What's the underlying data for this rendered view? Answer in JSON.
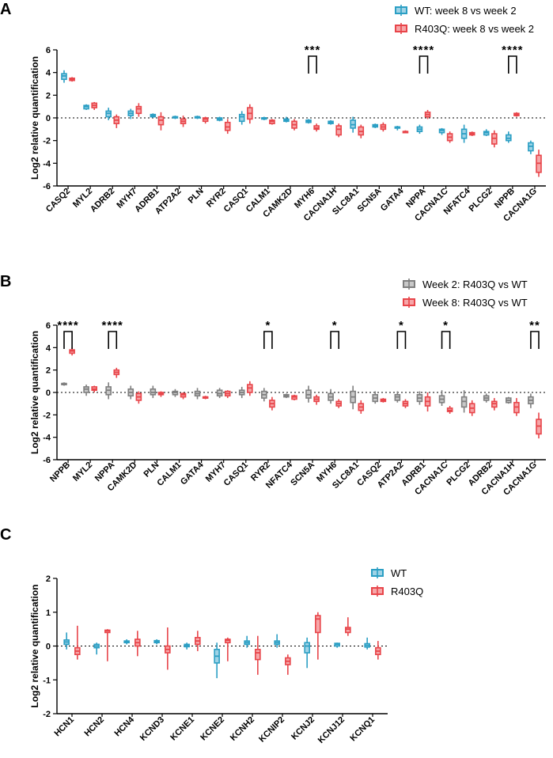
{
  "colors": {
    "wt": "#2b9fc4",
    "wt_fill": "#9fd3e6",
    "r403q": "#e8454a",
    "r403q_fill": "#f6a6a8",
    "w2": "#7f7f7f",
    "w2_fill": "#c8c8c8"
  },
  "chart_data": [
    {
      "panel": "A",
      "type": "box",
      "ylabel": "Log2 relative quantification",
      "ylim": [
        -6,
        6
      ],
      "yticks": [
        -6,
        -4,
        -2,
        0,
        2,
        4,
        6
      ],
      "legend": {
        "position": "top-right",
        "entries": [
          "WT: week 8 vs week 2",
          "R403Q: week 8 vs week 2"
        ]
      },
      "categories": [
        "CASQ2",
        "MYL2",
        "ADRB2",
        "MYH7",
        "ADRB1",
        "ATP2A2",
        "PLN",
        "RYR2",
        "CASQ1",
        "CALM1",
        "CAMK2D",
        "MYH6",
        "CACNA1H",
        "SLC8A1",
        "SCN5A",
        "GATA4",
        "NPPA",
        "CACNA1C",
        "NFATC4",
        "PLCG2",
        "NPPB",
        "CACNA1G"
      ],
      "series": [
        {
          "name": "WT: week 8 vs week 2",
          "color_key": "wt",
          "boxes": [
            [
              3.1,
              3.4,
              3.7,
              3.9,
              4.2
            ],
            [
              0.7,
              0.8,
              1.0,
              1.1,
              1.2
            ],
            [
              -0.2,
              0.1,
              0.4,
              0.6,
              0.9
            ],
            [
              -0.1,
              0.2,
              0.4,
              0.6,
              0.8
            ],
            [
              0.0,
              0.1,
              0.2,
              0.3,
              0.4
            ],
            [
              -0.1,
              0.0,
              0.1,
              0.1,
              0.2
            ],
            [
              -0.1,
              0.0,
              0.1,
              0.1,
              0.2
            ],
            [
              -0.3,
              -0.2,
              -0.1,
              0.0,
              0.1
            ],
            [
              -0.6,
              -0.3,
              0.1,
              0.3,
              0.6
            ],
            [
              -0.2,
              -0.1,
              0.0,
              0.0,
              0.1
            ],
            [
              -0.4,
              -0.3,
              -0.2,
              -0.1,
              0.1
            ],
            [
              -0.5,
              -0.4,
              -0.3,
              -0.2,
              -0.1
            ],
            [
              -0.6,
              -0.5,
              -0.4,
              -0.3,
              -0.2
            ],
            [
              -1.3,
              -0.9,
              -0.6,
              -0.2,
              0.1
            ],
            [
              -0.9,
              -0.8,
              -0.7,
              -0.6,
              -0.5
            ],
            [
              -1.1,
              -0.9,
              -0.8,
              -0.8,
              -0.7
            ],
            [
              -1.4,
              -1.2,
              -1.0,
              -0.8,
              -0.6
            ],
            [
              -1.5,
              -1.3,
              -1.1,
              -1.0,
              -0.9
            ],
            [
              -2.2,
              -1.8,
              -1.4,
              -1.0,
              -0.6
            ],
            [
              -1.6,
              -1.5,
              -1.3,
              -1.2,
              -1.0
            ],
            [
              -2.2,
              -2.0,
              -1.8,
              -1.5,
              -1.2
            ],
            [
              -3.2,
              -2.9,
              -2.5,
              -2.2,
              -2.0
            ]
          ]
        },
        {
          "name": "R403Q: week 8 vs week 2",
          "color_key": "r403q",
          "boxes": [
            [
              3.2,
              3.3,
              3.4,
              3.5,
              3.6
            ],
            [
              0.7,
              0.9,
              1.1,
              1.3,
              1.4
            ],
            [
              -0.9,
              -0.5,
              -0.2,
              0.1,
              0.3
            ],
            [
              0.1,
              0.4,
              0.8,
              1.0,
              1.3
            ],
            [
              -1.1,
              -0.6,
              -0.2,
              0.1,
              0.5
            ],
            [
              -0.8,
              -0.5,
              -0.3,
              -0.1,
              0.2
            ],
            [
              -0.5,
              -0.3,
              -0.1,
              0.0,
              0.1
            ],
            [
              -1.4,
              -1.1,
              -0.8,
              -0.4,
              -0.1
            ],
            [
              -0.5,
              -0.1,
              0.4,
              0.9,
              1.2
            ],
            [
              -0.6,
              -0.5,
              -0.3,
              -0.2,
              -0.1
            ],
            [
              -1.1,
              -0.9,
              -0.6,
              -0.3,
              -0.1
            ],
            [
              -1.2,
              -1.0,
              -0.9,
              -0.7,
              -0.5
            ],
            [
              -1.7,
              -1.5,
              -1.0,
              -0.7,
              -0.5
            ],
            [
              -1.8,
              -1.5,
              -1.2,
              -0.8,
              -0.6
            ],
            [
              -1.2,
              -1.0,
              -0.8,
              -0.6,
              -0.4
            ],
            [
              -1.3,
              -1.3,
              -1.2,
              -1.2,
              -1.1
            ],
            [
              -0.1,
              0.1,
              0.3,
              0.5,
              0.7
            ],
            [
              -2.2,
              -2.0,
              -1.7,
              -1.4,
              -1.2
            ],
            [
              -1.6,
              -1.5,
              -1.4,
              -1.3,
              -1.2
            ],
            [
              -2.6,
              -2.3,
              -1.8,
              -1.4,
              -1.1
            ],
            [
              0.1,
              0.2,
              0.3,
              0.4,
              0.5
            ],
            [
              -5.2,
              -4.8,
              -4.0,
              -3.3,
              -2.8
            ]
          ]
        }
      ],
      "significance": [
        {
          "category": "MYH6",
          "label": "***"
        },
        {
          "category": "NPPA",
          "label": "****"
        },
        {
          "category": "NPPB",
          "label": "****"
        }
      ]
    },
    {
      "panel": "B",
      "type": "box",
      "ylabel": "Log2 relative quantification",
      "ylim": [
        -6,
        6
      ],
      "yticks": [
        -6,
        -4,
        -2,
        0,
        2,
        4,
        6
      ],
      "legend": {
        "position": "top-right",
        "entries": [
          "Week 2: R403Q vs WT",
          "Week 8: R403Q vs WT"
        ]
      },
      "categories": [
        "NPPB",
        "MYL2",
        "NPPA",
        "CAMK2D",
        "PLN",
        "CALM1",
        "GATA4",
        "MYH7",
        "CASQ1",
        "RYR2",
        "NFATC4",
        "SCN5A",
        "MYH6",
        "SLC8A1",
        "CASQ2",
        "ATP2A2",
        "ADRB1",
        "CACNA1C",
        "PLCG2",
        "ADRB2",
        "CACNA1H",
        "CACNA1G"
      ],
      "series": [
        {
          "name": "Week 2: R403Q vs WT",
          "color_key": "w2",
          "boxes": [
            [
              0.6,
              0.7,
              0.8,
              0.8,
              0.9
            ],
            [
              -0.3,
              0.0,
              0.3,
              0.5,
              0.7
            ],
            [
              -0.6,
              -0.2,
              0.2,
              0.5,
              0.9
            ],
            [
              -0.6,
              -0.3,
              0.0,
              0.3,
              0.6
            ],
            [
              -0.5,
              -0.2,
              0.0,
              0.3,
              0.6
            ],
            [
              -0.4,
              -0.2,
              0.0,
              0.1,
              0.3
            ],
            [
              -0.6,
              -0.3,
              -0.1,
              0.1,
              0.4
            ],
            [
              -0.5,
              -0.3,
              -0.1,
              0.2,
              0.4
            ],
            [
              -0.5,
              -0.2,
              0.0,
              0.2,
              0.5
            ],
            [
              -0.8,
              -0.5,
              -0.2,
              0.1,
              0.4
            ],
            [
              -0.5,
              -0.4,
              -0.3,
              -0.2,
              -0.1
            ],
            [
              -0.9,
              -0.5,
              -0.2,
              0.2,
              0.6
            ],
            [
              -1.0,
              -0.7,
              -0.4,
              -0.1,
              0.3
            ],
            [
              -1.5,
              -0.9,
              -0.4,
              0.1,
              0.6
            ],
            [
              -1.0,
              -0.8,
              -0.5,
              -0.2,
              0.1
            ],
            [
              -0.9,
              -0.7,
              -0.4,
              -0.2,
              0.1
            ],
            [
              -1.1,
              -0.8,
              -0.5,
              -0.2,
              0.1
            ],
            [
              -1.2,
              -0.9,
              -0.6,
              -0.3,
              0.2
            ],
            [
              -1.8,
              -1.3,
              -0.8,
              -0.4,
              0.2
            ],
            [
              -0.9,
              -0.7,
              -0.5,
              -0.3,
              -0.1
            ],
            [
              -1.0,
              -0.9,
              -0.7,
              -0.5,
              -0.4
            ],
            [
              -1.4,
              -1.0,
              -0.7,
              -0.4,
              -0.1
            ]
          ]
        },
        {
          "name": "Week 8: R403Q vs WT",
          "color_key": "r403q",
          "boxes": [
            [
              3.3,
              3.5,
              3.7,
              3.8,
              4.0
            ],
            [
              0.0,
              0.2,
              0.3,
              0.5,
              0.6
            ],
            [
              1.3,
              1.6,
              1.8,
              2.0,
              2.2
            ],
            [
              -1.0,
              -0.7,
              -0.4,
              -0.1,
              0.1
            ],
            [
              -0.4,
              -0.2,
              -0.1,
              0.0,
              0.1
            ],
            [
              -0.6,
              -0.4,
              -0.2,
              -0.1,
              0.0
            ],
            [
              -0.6,
              -0.5,
              -0.4,
              -0.4,
              -0.3
            ],
            [
              -0.5,
              -0.3,
              -0.1,
              0.1,
              0.2
            ],
            [
              -0.3,
              0.0,
              0.4,
              0.7,
              1.0
            ],
            [
              -1.6,
              -1.3,
              -1.0,
              -0.7,
              -0.4
            ],
            [
              -0.7,
              -0.6,
              -0.4,
              -0.3,
              -0.2
            ],
            [
              -1.1,
              -0.8,
              -0.6,
              -0.4,
              -0.2
            ],
            [
              -1.4,
              -1.2,
              -1.0,
              -0.8,
              -0.6
            ],
            [
              -1.9,
              -1.6,
              -1.3,
              -1.0,
              -0.7
            ],
            [
              -0.9,
              -0.8,
              -0.7,
              -0.6,
              -0.5
            ],
            [
              -1.4,
              -1.2,
              -1.0,
              -0.8,
              -0.6
            ],
            [
              -1.7,
              -1.2,
              -0.8,
              -0.4,
              0.0
            ],
            [
              -1.9,
              -1.7,
              -1.6,
              -1.4,
              -1.2
            ],
            [
              -2.1,
              -1.8,
              -1.4,
              -1.0,
              -0.7
            ],
            [
              -1.6,
              -1.3,
              -1.0,
              -0.8,
              -0.5
            ],
            [
              -2.1,
              -1.8,
              -1.3,
              -0.9,
              -0.5
            ],
            [
              -4.1,
              -3.7,
              -3.0,
              -2.4,
              -1.8
            ]
          ]
        }
      ],
      "significance": [
        {
          "category": "NPPB",
          "label": "****"
        },
        {
          "category": "NPPA",
          "label": "****"
        },
        {
          "category": "RYR2",
          "label": "*"
        },
        {
          "category": "MYH6",
          "label": "*"
        },
        {
          "category": "ATP2A2",
          "label": "*"
        },
        {
          "category": "CACNA1C",
          "label": "*"
        },
        {
          "category": "CACNA1G",
          "label": "**"
        }
      ]
    },
    {
      "panel": "C",
      "type": "box",
      "ylabel": "Log2 relative quantification",
      "ylim": [
        -2,
        2
      ],
      "yticks": [
        -2,
        -1,
        0,
        1,
        2
      ],
      "legend": {
        "position": "top-right",
        "entries": [
          "WT",
          "R403Q"
        ]
      },
      "categories": [
        "HCN1",
        "HCN2",
        "HCN4",
        "KCND3",
        "KCNE1",
        "KCNE2",
        "KCNH2",
        "KCNIP2",
        "KCNJ2",
        "KCNJ12",
        "KCNQ1"
      ],
      "series": [
        {
          "name": "WT",
          "color_key": "wt",
          "boxes": [
            [
              -0.1,
              0.05,
              0.12,
              0.18,
              0.4
            ],
            [
              -0.25,
              -0.05,
              0.0,
              0.05,
              0.1
            ],
            [
              0.05,
              0.1,
              0.13,
              0.15,
              0.2
            ],
            [
              0.05,
              0.1,
              0.13,
              0.16,
              0.2
            ],
            [
              -0.1,
              -0.02,
              0.02,
              0.05,
              0.1
            ],
            [
              -0.95,
              -0.5,
              -0.3,
              -0.1,
              0.1
            ],
            [
              -0.05,
              0.05,
              0.1,
              0.15,
              0.3
            ],
            [
              -0.05,
              0.05,
              0.1,
              0.15,
              0.35
            ],
            [
              -0.65,
              -0.2,
              0.0,
              0.1,
              0.25
            ],
            [
              -0.05,
              0.0,
              0.05,
              0.08,
              0.1
            ],
            [
              -0.1,
              -0.03,
              0.02,
              0.07,
              0.25
            ]
          ]
        },
        {
          "name": "R403Q",
          "color_key": "r403q",
          "boxes": [
            [
              -0.4,
              -0.25,
              -0.15,
              -0.05,
              0.6
            ],
            [
              -0.45,
              0.4,
              0.45,
              0.47,
              0.5
            ],
            [
              -0.3,
              0.0,
              0.1,
              0.2,
              0.45
            ],
            [
              -0.7,
              -0.2,
              -0.1,
              0.0,
              0.55
            ],
            [
              -0.15,
              0.05,
              0.15,
              0.25,
              0.45
            ],
            [
              -0.45,
              0.1,
              0.17,
              0.2,
              0.25
            ],
            [
              -0.85,
              -0.4,
              -0.2,
              -0.1,
              0.3
            ],
            [
              -0.85,
              -0.55,
              -0.45,
              -0.35,
              -0.25
            ],
            [
              -0.4,
              0.4,
              0.8,
              0.9,
              1.0
            ],
            [
              0.3,
              0.4,
              0.5,
              0.55,
              0.85
            ],
            [
              -0.4,
              -0.25,
              -0.15,
              -0.05,
              0.15
            ]
          ]
        }
      ],
      "significance": []
    }
  ]
}
